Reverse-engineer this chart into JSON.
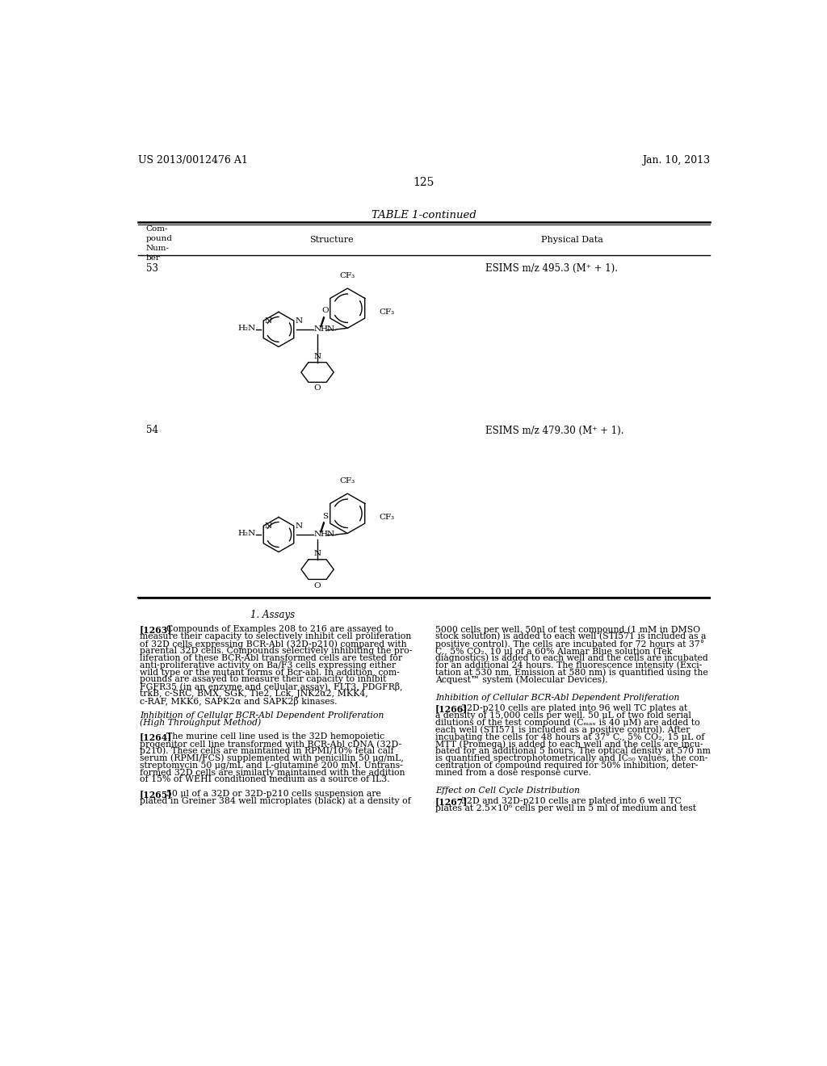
{
  "bg_color": "#ffffff",
  "header_left": "US 2013/0012476 A1",
  "header_right": "Jan. 10, 2013",
  "page_number": "125",
  "table_title": "TABLE 1-continued",
  "compound_53_num": "53",
  "compound_53_data": "ESIMS m/z 495.3 (M⁺ + 1).",
  "compound_54_num": "54",
  "compound_54_data": "ESIMS m/z 479.30 (M⁺ + 1).",
  "section_heading": "1. Assays",
  "inhibition_heading_1a": "Inhibition of Cellular BCR-Abl Dependent Proliferation",
  "inhibition_heading_1b": "(High Throughput Method)",
  "inhibition_heading_2": "Inhibition of Cellular BCR-Abl Dependent Proliferation",
  "cell_cycle_heading": "Effect on Cell Cycle Distribution"
}
